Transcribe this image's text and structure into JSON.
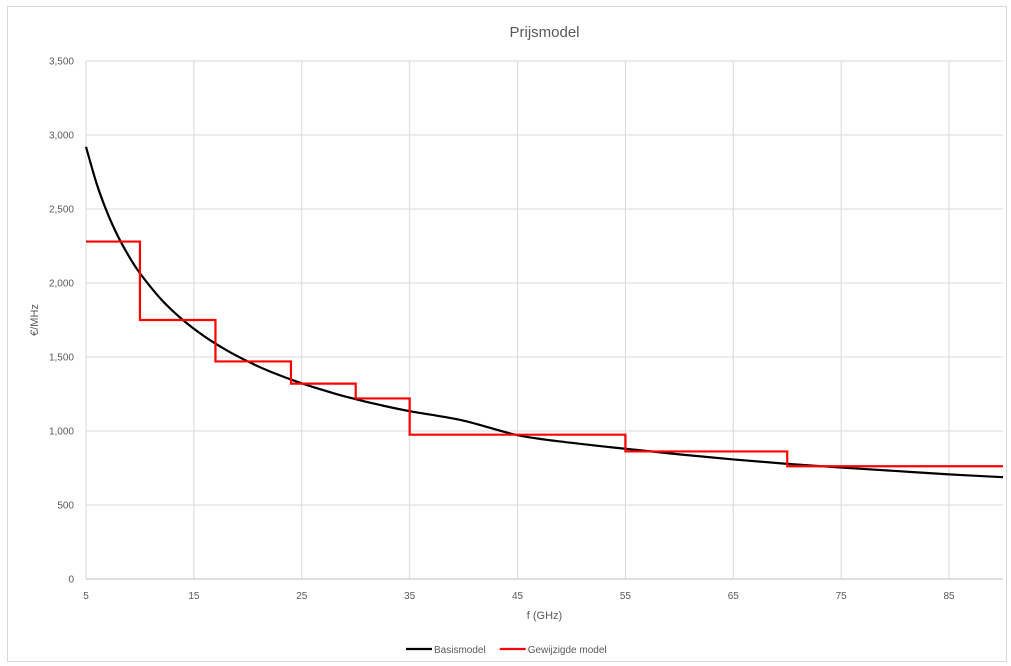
{
  "chart_data": {
    "type": "line",
    "title": "Prijsmodel",
    "xlabel": "f (GHz)",
    "ylabel": "€/MHz",
    "xlim": [
      5,
      90
    ],
    "ylim": [
      0,
      3500
    ],
    "xticks": [
      5,
      15,
      25,
      35,
      45,
      55,
      65,
      75,
      85
    ],
    "xtick_labels": [
      "5",
      "15",
      "25",
      "35",
      "45",
      "55",
      "65",
      "75",
      "85"
    ],
    "yticks": [
      0,
      500,
      1000,
      1500,
      2000,
      2500,
      3000,
      3500
    ],
    "ytick_labels": [
      "0",
      "500",
      "1,000",
      "1,500",
      "2,000",
      "2,500",
      "3,000",
      "3,500"
    ],
    "grid": true,
    "legend_position": "bottom",
    "series": [
      {
        "name": "Basismodel",
        "color": "#000000",
        "style": "smooth",
        "x": [
          5,
          6,
          7,
          8,
          9,
          10,
          12,
          14,
          16,
          18,
          20,
          22,
          25,
          28,
          30,
          32,
          35,
          40,
          45,
          50,
          55,
          60,
          65,
          70,
          75,
          80,
          85,
          90
        ],
        "y": [
          2920,
          2668,
          2470,
          2310,
          2178,
          2066,
          1887,
          1749,
          1638,
          1547,
          1470,
          1404,
          1322,
          1254,
          1215,
          1180,
          1134,
          1070,
          972,
          920,
          880,
          842,
          808,
          778,
          753,
          730,
          707,
          688
        ]
      },
      {
        "name": "Gewijzigde model",
        "color": "#ff0000",
        "style": "step",
        "x": [
          5,
          10,
          10,
          17,
          17,
          24,
          24,
          30,
          30,
          35,
          35,
          55,
          55,
          70,
          70,
          90
        ],
        "y": [
          2280,
          2280,
          1750,
          1750,
          1470,
          1470,
          1320,
          1320,
          1220,
          1220,
          975,
          975,
          862,
          862,
          762,
          762
        ]
      }
    ]
  }
}
